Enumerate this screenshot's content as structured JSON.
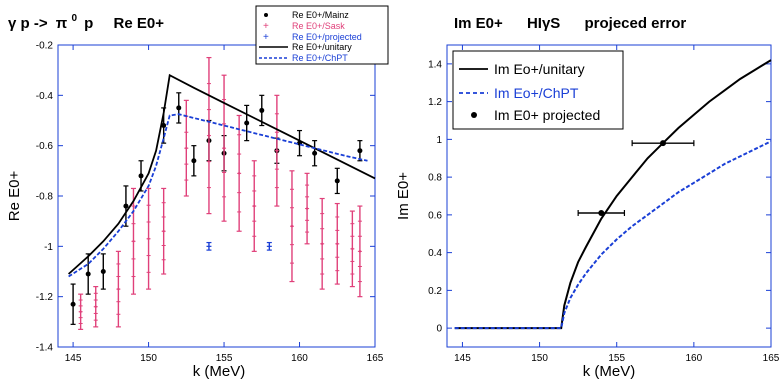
{
  "chart_data": [
    {
      "type": "scatter",
      "title_parts": {
        "a": "γ p ->",
        "b": "π",
        "c": "0",
        "d": "p",
        "e": "Re E0+"
      },
      "xlabel": "k (MeV)",
      "ylabel": "Re E0+",
      "xlim": [
        144,
        165
      ],
      "ylim": [
        -1.4,
        -0.2
      ],
      "xticks": [
        145,
        150,
        155,
        160,
        165
      ],
      "yticks": [
        -1.4,
        -1.2,
        -1.0,
        -0.8,
        -0.6,
        -0.4,
        -0.2
      ],
      "ytick_labels": [
        "-1.4",
        "-1.2",
        "-1",
        "-0.8",
        "-0.6",
        "-0.4",
        "-0.2"
      ],
      "legend_position": "top-right",
      "colors": {
        "mainz": "#000000",
        "sask": "#e0407a",
        "projected": "#1a3fd6",
        "unitary": "#000000",
        "chpt": "#1a3fd6"
      },
      "series": [
        {
          "name": "Re E0+/Mainz",
          "kind": "points",
          "color": "#000000",
          "points": [
            {
              "x": 145.0,
              "y": -1.23,
              "err": 0.08
            },
            {
              "x": 146.0,
              "y": -1.11,
              "err": 0.08
            },
            {
              "x": 147.0,
              "y": -1.1,
              "err": 0.07
            },
            {
              "x": 148.5,
              "y": -0.84,
              "err": 0.08
            },
            {
              "x": 149.5,
              "y": -0.72,
              "err": 0.06
            },
            {
              "x": 151.0,
              "y": -0.52,
              "err": 0.07
            },
            {
              "x": 152.0,
              "y": -0.45,
              "err": 0.06
            },
            {
              "x": 153.0,
              "y": -0.66,
              "err": 0.06
            },
            {
              "x": 154.0,
              "y": -0.58,
              "err": 0.08
            },
            {
              "x": 155.0,
              "y": -0.63,
              "err": 0.07
            },
            {
              "x": 156.5,
              "y": -0.51,
              "err": 0.07
            },
            {
              "x": 157.5,
              "y": -0.46,
              "err": 0.06
            },
            {
              "x": 158.5,
              "y": -0.62,
              "err": 0.05
            },
            {
              "x": 160.0,
              "y": -0.59,
              "err": 0.05
            },
            {
              "x": 161.0,
              "y": -0.63,
              "err": 0.05
            },
            {
              "x": 162.5,
              "y": -0.74,
              "err": 0.05
            },
            {
              "x": 164.0,
              "y": -0.62,
              "err": 0.04
            }
          ]
        },
        {
          "name": "Re E0+/Sask",
          "kind": "points",
          "color": "#e0407a",
          "points": [
            {
              "x": 145.5,
              "y": -1.26,
              "err": 0.07
            },
            {
              "x": 146.5,
              "y": -1.24,
              "err": 0.08
            },
            {
              "x": 148.0,
              "y": -1.17,
              "err": 0.15
            },
            {
              "x": 149.0,
              "y": -0.98,
              "err": 0.21
            },
            {
              "x": 150.0,
              "y": -0.97,
              "err": 0.2
            },
            {
              "x": 151.0,
              "y": -0.94,
              "err": 0.17
            },
            {
              "x": 152.5,
              "y": -0.61,
              "err": 0.19
            },
            {
              "x": 154.0,
              "y": -0.56,
              "err": 0.31
            },
            {
              "x": 155.0,
              "y": -0.61,
              "err": 0.29
            },
            {
              "x": 156.0,
              "y": -0.71,
              "err": 0.23
            },
            {
              "x": 157.0,
              "y": -0.84,
              "err": 0.18
            },
            {
              "x": 158.5,
              "y": -0.62,
              "err": 0.22
            },
            {
              "x": 159.5,
              "y": -0.92,
              "err": 0.22
            },
            {
              "x": 160.5,
              "y": -0.85,
              "err": 0.14
            },
            {
              "x": 161.5,
              "y": -0.99,
              "err": 0.18
            },
            {
              "x": 162.5,
              "y": -0.99,
              "err": 0.16
            },
            {
              "x": 163.5,
              "y": -1.01,
              "err": 0.15
            },
            {
              "x": 164.0,
              "y": -1.02,
              "err": 0.18
            }
          ]
        },
        {
          "name": "Re E0+/projected",
          "kind": "points",
          "color": "#1a3fd6",
          "points": [
            {
              "x": 154.0,
              "y": -1.0,
              "err": 0.015
            },
            {
              "x": 158.0,
              "y": -1.0,
              "err": 0.015
            }
          ]
        },
        {
          "name": "Re E0+/unitary",
          "kind": "line",
          "color": "#000000",
          "dash": false,
          "x": [
            144.7,
            146,
            147,
            148,
            149,
            150,
            150.5,
            151,
            151.4,
            153,
            155,
            157,
            159,
            161,
            163,
            165
          ],
          "y": [
            -1.11,
            -1.04,
            -0.98,
            -0.91,
            -0.82,
            -0.71,
            -0.62,
            -0.47,
            -0.32,
            -0.37,
            -0.43,
            -0.49,
            -0.55,
            -0.61,
            -0.67,
            -0.73
          ]
        },
        {
          "name": "Re E0+/ChPT",
          "kind": "line",
          "color": "#1a3fd6",
          "dash": true,
          "x": [
            144.7,
            146,
            147,
            148,
            149,
            150,
            150.5,
            151,
            151.4,
            152,
            153,
            155,
            157,
            159,
            161,
            163,
            164.5
          ],
          "y": [
            -1.12,
            -1.07,
            -1.01,
            -0.94,
            -0.86,
            -0.76,
            -0.68,
            -0.57,
            -0.48,
            -0.475,
            -0.49,
            -0.52,
            -0.55,
            -0.58,
            -0.61,
            -0.64,
            -0.66
          ]
        }
      ]
    },
    {
      "type": "line",
      "title_parts": {
        "a": "Im E0+",
        "b": "HIγS",
        "c": "projeced error"
      },
      "xlabel": "k (MeV)",
      "ylabel": "Im E0+",
      "xlim": [
        144,
        165
      ],
      "ylim": [
        -0.1,
        1.5
      ],
      "xticks": [
        145,
        150,
        155,
        160,
        165
      ],
      "yticks": [
        0,
        0.2,
        0.4,
        0.6,
        0.8,
        1.0,
        1.2,
        1.4
      ],
      "ytick_labels": [
        "0",
        "0.2",
        "0.4",
        "0.6",
        "0.8",
        "1",
        "1.2",
        "1.4"
      ],
      "legend_position": "top-left",
      "colors": {
        "unitary": "#000000",
        "chpt": "#1a3fd6",
        "projected": "#000000"
      },
      "series": [
        {
          "name": "Im Eo+/unitary",
          "kind": "line",
          "color": "#000000",
          "dash": false,
          "x": [
            144.5,
            151.4,
            151.6,
            152,
            152.5,
            153,
            154,
            155,
            156,
            157,
            158,
            159,
            160,
            161,
            162,
            163,
            164,
            165
          ],
          "y": [
            0,
            0,
            0.12,
            0.24,
            0.35,
            0.43,
            0.58,
            0.7,
            0.8,
            0.9,
            0.98,
            1.06,
            1.13,
            1.2,
            1.26,
            1.32,
            1.37,
            1.42
          ]
        },
        {
          "name": "Im Eo+/ChPT",
          "kind": "line",
          "color": "#1a3fd6",
          "dash": true,
          "x": [
            144.5,
            151.4,
            151.6,
            152,
            152.5,
            153,
            154,
            155,
            156,
            157,
            158,
            159,
            160,
            161,
            162,
            163,
            164,
            165
          ],
          "y": [
            0,
            0,
            0.08,
            0.16,
            0.23,
            0.29,
            0.39,
            0.47,
            0.54,
            0.6,
            0.66,
            0.72,
            0.77,
            0.82,
            0.87,
            0.91,
            0.95,
            0.99
          ]
        },
        {
          "name": "Im E0+ projected",
          "kind": "points",
          "color": "#000000",
          "points": [
            {
              "x": 154.0,
              "y": 0.61,
              "xerr": 1.5
            },
            {
              "x": 158.0,
              "y": 0.98,
              "xerr": 2.0
            }
          ]
        }
      ]
    }
  ]
}
